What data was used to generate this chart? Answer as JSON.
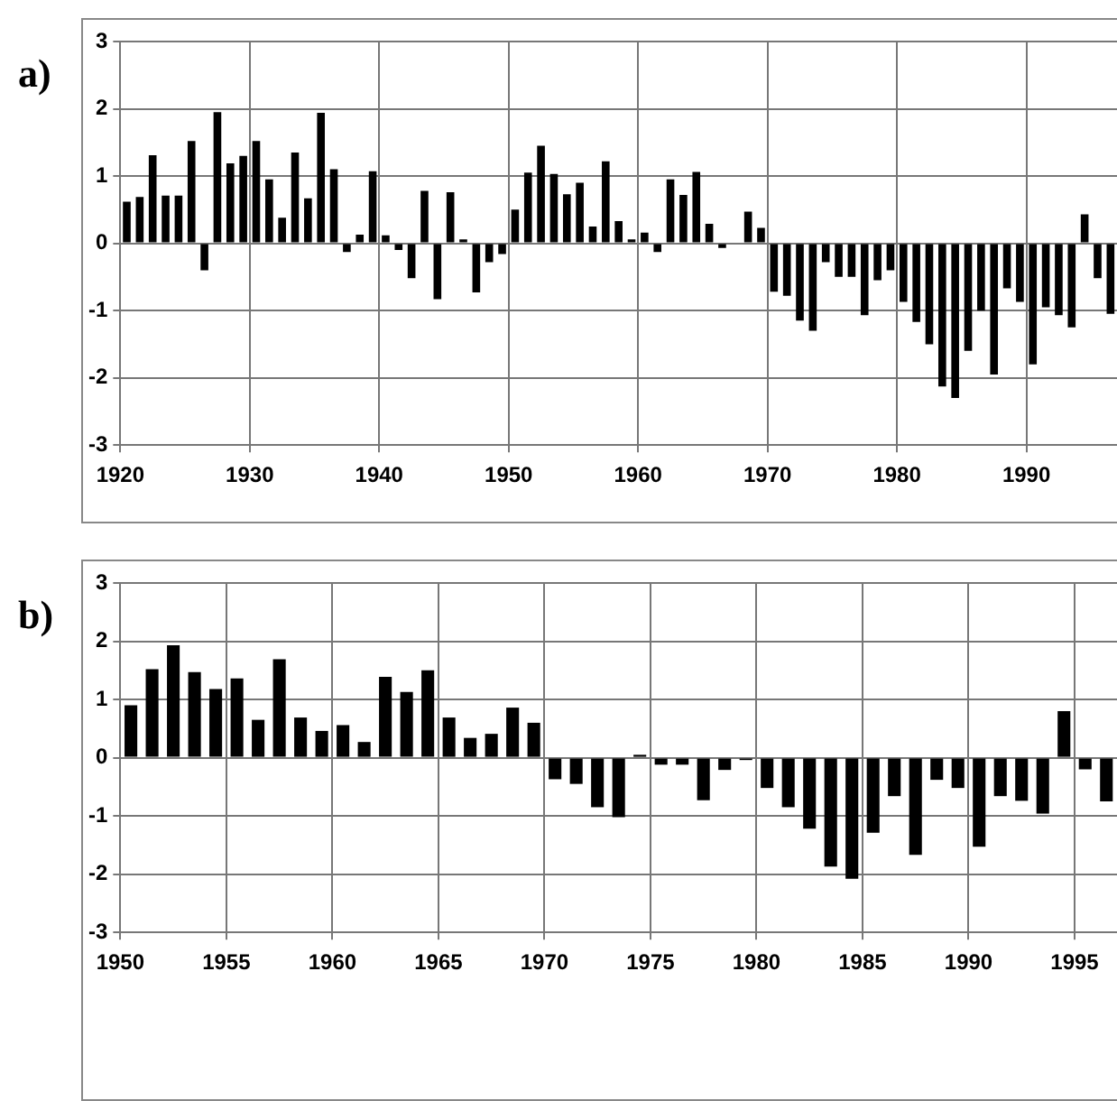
{
  "chart_data": [
    {
      "type": "bar",
      "title": "a)",
      "color": "#000000",
      "grid": true,
      "x": [
        1920.5,
        1921.5,
        1922.5,
        1923.5,
        1924.5,
        1925.5,
        1926.5,
        1927.5,
        1928.5,
        1929.5,
        1930.5,
        1931.5,
        1932.5,
        1933.5,
        1934.5,
        1935.5,
        1936.5,
        1937.5,
        1938.5,
        1939.5,
        1940.5,
        1941.5,
        1942.5,
        1943.5,
        1944.5,
        1945.5,
        1946.5,
        1947.5,
        1948.5,
        1949.5,
        1950.5,
        1951.5,
        1952.5,
        1953.5,
        1954.5,
        1955.5,
        1956.5,
        1957.5,
        1958.5,
        1959.5,
        1960.5,
        1961.5,
        1962.5,
        1963.5,
        1964.5,
        1965.5,
        1966.5,
        1967.5,
        1968.5,
        1969.5,
        1970.5,
        1971.5,
        1972.5,
        1973.5,
        1974.5,
        1975.5,
        1976.5,
        1977.5,
        1978.5,
        1979.5,
        1980.5,
        1981.5,
        1982.5,
        1983.5,
        1984.5,
        1985.5,
        1986.5,
        1987.5,
        1988.5,
        1989.5,
        1990.5,
        1991.5,
        1992.5,
        1993.5,
        1994.5,
        1995.5,
        1996.5
      ],
      "values": [
        0.62,
        0.69,
        1.31,
        0.71,
        0.71,
        1.52,
        -0.4,
        1.95,
        1.19,
        1.3,
        1.52,
        0.95,
        0.38,
        1.35,
        0.67,
        1.94,
        1.1,
        -0.13,
        0.13,
        1.07,
        0.12,
        -0.1,
        -0.52,
        0.78,
        -0.83,
        0.76,
        0.06,
        -0.73,
        -0.28,
        -0.16,
        0.5,
        1.05,
        1.45,
        1.03,
        0.73,
        0.9,
        0.25,
        1.22,
        0.33,
        0.06,
        0.16,
        -0.13,
        0.95,
        0.72,
        1.06,
        0.29,
        -0.07,
        null,
        0.47,
        0.23,
        -0.72,
        -0.78,
        -1.15,
        -1.3,
        -0.28,
        -0.5,
        -0.5,
        -1.07,
        -0.55,
        -0.4,
        -0.87,
        -1.17,
        -1.5,
        -2.13,
        -2.3,
        -1.6,
        -1.0,
        -1.95,
        -0.67,
        -0.87,
        -1.8,
        -0.95,
        -1.07,
        -1.25,
        0.43,
        -0.52,
        -1.05
      ],
      "xlim": [
        1920,
        1997
      ],
      "xticks": [
        1920,
        1930,
        1940,
        1950,
        1960,
        1970,
        1980,
        1990
      ],
      "ylim": [
        -3,
        3
      ],
      "yticks": [
        -3,
        -2,
        -1,
        0,
        1,
        2,
        3
      ]
    },
    {
      "type": "bar",
      "title": "b)",
      "color": "#000000",
      "grid": true,
      "x": [
        1950.5,
        1951.5,
        1952.5,
        1953.5,
        1954.5,
        1955.5,
        1956.5,
        1957.5,
        1958.5,
        1959.5,
        1960.5,
        1961.5,
        1962.5,
        1963.5,
        1964.5,
        1965.5,
        1966.5,
        1967.5,
        1968.5,
        1969.5,
        1970.5,
        1971.5,
        1972.5,
        1973.5,
        1974.5,
        1975.5,
        1976.5,
        1977.5,
        1978.5,
        1979.5,
        1980.5,
        1981.5,
        1982.5,
        1983.5,
        1984.5,
        1985.5,
        1986.5,
        1987.5,
        1988.5,
        1989.5,
        1990.5,
        1991.5,
        1992.5,
        1993.5,
        1994.5,
        1995.5,
        1996.5
      ],
      "values": [
        0.9,
        1.52,
        1.93,
        1.47,
        1.18,
        1.36,
        0.65,
        1.69,
        0.69,
        0.46,
        0.56,
        0.27,
        1.39,
        1.13,
        1.5,
        0.69,
        0.34,
        0.41,
        0.86,
        0.6,
        -0.37,
        -0.45,
        -0.85,
        -1.02,
        0.05,
        -0.12,
        -0.12,
        -0.73,
        -0.21,
        -0.04,
        -0.52,
        -0.85,
        -1.22,
        -1.87,
        -2.08,
        -1.29,
        -0.66,
        -1.67,
        -0.38,
        -0.52,
        -1.53,
        -0.66,
        -0.74,
        -0.96,
        0.8,
        -0.2,
        -0.75
      ],
      "xlim": [
        1950,
        1997
      ],
      "xticks": [
        1950,
        1955,
        1960,
        1965,
        1970,
        1975,
        1980,
        1985,
        1990,
        1995
      ],
      "ylim": [
        -3,
        3
      ],
      "yticks": [
        -3,
        -2,
        -1,
        0,
        1,
        2,
        3
      ]
    }
  ]
}
